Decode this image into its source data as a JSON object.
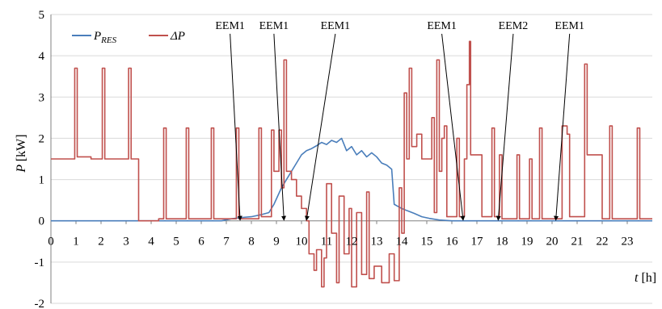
{
  "chart_data": {
    "type": "line",
    "xlabel_var": "t",
    "xlabel_unit": "[h]",
    "ylabel_var": "P",
    "ylabel_unit": "[kW]",
    "xlim": [
      0,
      24
    ],
    "ylim": [
      -2,
      5
    ],
    "x_ticks": [
      0,
      1,
      2,
      3,
      4,
      5,
      6,
      7,
      8,
      9,
      10,
      11,
      12,
      13,
      14,
      15,
      16,
      17,
      18,
      19,
      20,
      21,
      22,
      23
    ],
    "y_ticks": [
      -2,
      -1,
      0,
      1,
      2,
      3,
      4,
      5
    ],
    "grid": "horizontal",
    "legend_position": "top-left",
    "series": [
      {
        "name_main": "P",
        "name_sub": "RES",
        "color": "#4a7ebb",
        "points": [
          [
            0,
            0
          ],
          [
            6.8,
            0
          ],
          [
            7.2,
            0.05
          ],
          [
            7.6,
            0.08
          ],
          [
            8.0,
            0.1
          ],
          [
            8.4,
            0.15
          ],
          [
            8.7,
            0.2
          ],
          [
            8.9,
            0.4
          ],
          [
            9.2,
            0.8
          ],
          [
            9.5,
            1.1
          ],
          [
            9.8,
            1.4
          ],
          [
            10.0,
            1.6
          ],
          [
            10.2,
            1.7
          ],
          [
            10.4,
            1.75
          ],
          [
            10.6,
            1.82
          ],
          [
            10.8,
            1.9
          ],
          [
            11.0,
            1.85
          ],
          [
            11.2,
            1.95
          ],
          [
            11.4,
            1.9
          ],
          [
            11.6,
            2.0
          ],
          [
            11.8,
            1.7
          ],
          [
            12.0,
            1.8
          ],
          [
            12.2,
            1.6
          ],
          [
            12.4,
            1.7
          ],
          [
            12.6,
            1.55
          ],
          [
            12.8,
            1.65
          ],
          [
            13.0,
            1.55
          ],
          [
            13.2,
            1.4
          ],
          [
            13.4,
            1.35
          ],
          [
            13.6,
            1.25
          ],
          [
            13.7,
            0.4
          ],
          [
            14.0,
            0.3
          ],
          [
            14.2,
            0.25
          ],
          [
            14.5,
            0.18
          ],
          [
            14.8,
            0.1
          ],
          [
            15.1,
            0.06
          ],
          [
            15.5,
            0.02
          ],
          [
            16.0,
            0
          ],
          [
            24,
            0
          ]
        ]
      },
      {
        "name_main": "ΔP",
        "color": "#c0504d",
        "points": [
          [
            0,
            1.5
          ],
          [
            0.95,
            1.5
          ],
          [
            0.95,
            3.7
          ],
          [
            1.05,
            3.7
          ],
          [
            1.05,
            1.55
          ],
          [
            1.6,
            1.55
          ],
          [
            1.6,
            1.5
          ],
          [
            2.05,
            1.5
          ],
          [
            2.05,
            3.7
          ],
          [
            2.15,
            3.7
          ],
          [
            2.15,
            1.5
          ],
          [
            3.1,
            1.5
          ],
          [
            3.1,
            3.7
          ],
          [
            3.2,
            3.7
          ],
          [
            3.2,
            1.5
          ],
          [
            3.5,
            1.5
          ],
          [
            3.5,
            0
          ],
          [
            4.3,
            0
          ],
          [
            4.3,
            0.05
          ],
          [
            4.5,
            0.05
          ],
          [
            4.5,
            2.25
          ],
          [
            4.6,
            2.25
          ],
          [
            4.6,
            0.05
          ],
          [
            5.4,
            0.05
          ],
          [
            5.4,
            2.25
          ],
          [
            5.5,
            2.25
          ],
          [
            5.5,
            0.05
          ],
          [
            6.4,
            0.05
          ],
          [
            6.4,
            2.25
          ],
          [
            6.5,
            2.25
          ],
          [
            6.5,
            0.05
          ],
          [
            7.4,
            0.05
          ],
          [
            7.4,
            2.25
          ],
          [
            7.5,
            2.25
          ],
          [
            7.5,
            0.05
          ],
          [
            8.3,
            0.05
          ],
          [
            8.3,
            2.25
          ],
          [
            8.4,
            2.25
          ],
          [
            8.4,
            0.1
          ],
          [
            8.8,
            0.1
          ],
          [
            8.8,
            2.2
          ],
          [
            8.9,
            2.2
          ],
          [
            8.9,
            1.2
          ],
          [
            9.1,
            1.2
          ],
          [
            9.1,
            2.2
          ],
          [
            9.2,
            2.2
          ],
          [
            9.2,
            0.8
          ],
          [
            9.3,
            0.8
          ],
          [
            9.3,
            3.9
          ],
          [
            9.4,
            3.9
          ],
          [
            9.4,
            1.2
          ],
          [
            9.6,
            1.2
          ],
          [
            9.6,
            1.0
          ],
          [
            9.8,
            1.0
          ],
          [
            9.8,
            0.6
          ],
          [
            10.0,
            0.6
          ],
          [
            10.0,
            0.3
          ],
          [
            10.2,
            0.3
          ],
          [
            10.2,
            0
          ],
          [
            10.3,
            0
          ],
          [
            10.3,
            -0.8
          ],
          [
            10.5,
            -0.8
          ],
          [
            10.5,
            -1.2
          ],
          [
            10.6,
            -1.2
          ],
          [
            10.6,
            -0.7
          ],
          [
            10.8,
            -0.7
          ],
          [
            10.8,
            -1.6
          ],
          [
            10.9,
            -1.6
          ],
          [
            10.9,
            -0.9
          ],
          [
            11.0,
            -0.9
          ],
          [
            11.0,
            0.9
          ],
          [
            11.2,
            0.9
          ],
          [
            11.2,
            -0.3
          ],
          [
            11.4,
            -0.3
          ],
          [
            11.4,
            -1.5
          ],
          [
            11.5,
            -1.5
          ],
          [
            11.5,
            0.6
          ],
          [
            11.7,
            0.6
          ],
          [
            11.7,
            -0.8
          ],
          [
            11.9,
            -0.8
          ],
          [
            11.9,
            0.3
          ],
          [
            12.0,
            0.3
          ],
          [
            12.0,
            -1.6
          ],
          [
            12.2,
            -1.6
          ],
          [
            12.2,
            0.2
          ],
          [
            12.4,
            0.2
          ],
          [
            12.4,
            -1.3
          ],
          [
            12.6,
            -1.3
          ],
          [
            12.6,
            0.7
          ],
          [
            12.7,
            0.7
          ],
          [
            12.7,
            -1.4
          ],
          [
            12.9,
            -1.4
          ],
          [
            12.9,
            -1.1
          ],
          [
            13.2,
            -1.1
          ],
          [
            13.2,
            -1.5
          ],
          [
            13.5,
            -1.5
          ],
          [
            13.5,
            -0.8
          ],
          [
            13.7,
            -0.8
          ],
          [
            13.7,
            -1.45
          ],
          [
            13.9,
            -1.45
          ],
          [
            13.9,
            0.8
          ],
          [
            14.0,
            0.8
          ],
          [
            14.0,
            -0.3
          ],
          [
            14.1,
            -0.3
          ],
          [
            14.1,
            3.1
          ],
          [
            14.2,
            3.1
          ],
          [
            14.2,
            1.5
          ],
          [
            14.3,
            1.5
          ],
          [
            14.3,
            3.7
          ],
          [
            14.4,
            3.7
          ],
          [
            14.4,
            1.8
          ],
          [
            14.6,
            1.8
          ],
          [
            14.6,
            2.1
          ],
          [
            14.8,
            2.1
          ],
          [
            14.8,
            1.5
          ],
          [
            15.2,
            1.5
          ],
          [
            15.2,
            2.5
          ],
          [
            15.3,
            2.5
          ],
          [
            15.3,
            0.2
          ],
          [
            15.4,
            0.2
          ],
          [
            15.4,
            3.9
          ],
          [
            15.5,
            3.9
          ],
          [
            15.5,
            1.2
          ],
          [
            15.6,
            1.2
          ],
          [
            15.6,
            2.0
          ],
          [
            15.7,
            2.0
          ],
          [
            15.7,
            2.3
          ],
          [
            15.8,
            2.3
          ],
          [
            15.8,
            0.1
          ],
          [
            16.2,
            0.1
          ],
          [
            16.2,
            2.0
          ],
          [
            16.3,
            2.0
          ],
          [
            16.3,
            0.1
          ],
          [
            16.5,
            0.1
          ],
          [
            16.5,
            1.5
          ],
          [
            16.6,
            1.5
          ],
          [
            16.6,
            3.3
          ],
          [
            16.7,
            3.3
          ],
          [
            16.7,
            4.35
          ],
          [
            16.75,
            4.35
          ],
          [
            16.75,
            1.6
          ],
          [
            17.2,
            1.6
          ],
          [
            17.2,
            0.1
          ],
          [
            17.6,
            0.1
          ],
          [
            17.6,
            2.25
          ],
          [
            17.7,
            2.25
          ],
          [
            17.7,
            0.1
          ],
          [
            17.9,
            0.1
          ],
          [
            17.9,
            1.6
          ],
          [
            18.0,
            1.6
          ],
          [
            18.0,
            0.05
          ],
          [
            18.6,
            0.05
          ],
          [
            18.6,
            1.6
          ],
          [
            18.7,
            1.6
          ],
          [
            18.7,
            0.05
          ],
          [
            19.1,
            0.05
          ],
          [
            19.1,
            1.5
          ],
          [
            19.2,
            1.5
          ],
          [
            19.2,
            0.05
          ],
          [
            19.5,
            0.05
          ],
          [
            19.5,
            2.25
          ],
          [
            19.6,
            2.25
          ],
          [
            19.6,
            0.05
          ],
          [
            20.4,
            0.05
          ],
          [
            20.4,
            2.3
          ],
          [
            20.6,
            2.3
          ],
          [
            20.6,
            2.1
          ],
          [
            20.7,
            2.1
          ],
          [
            20.7,
            0.1
          ],
          [
            21.3,
            0.1
          ],
          [
            21.3,
            3.8
          ],
          [
            21.4,
            3.8
          ],
          [
            21.4,
            1.6
          ],
          [
            22.0,
            1.6
          ],
          [
            22.0,
            0.05
          ],
          [
            22.3,
            0.05
          ],
          [
            22.3,
            2.3
          ],
          [
            22.4,
            2.3
          ],
          [
            22.4,
            0.05
          ],
          [
            23.4,
            0.05
          ],
          [
            23.4,
            2.25
          ],
          [
            23.5,
            2.25
          ],
          [
            23.5,
            0.05
          ],
          [
            24,
            0.05
          ]
        ]
      }
    ],
    "annotations": [
      {
        "label": "EEM1",
        "label_x": 7.15,
        "label_y": 4.65,
        "arrow_to": [
          7.55,
          0
        ]
      },
      {
        "label": "EEM1",
        "label_x": 8.9,
        "label_y": 4.65,
        "arrow_to": [
          9.3,
          0
        ]
      },
      {
        "label": "EEM1",
        "label_x": 11.35,
        "label_y": 4.65,
        "arrow_to": [
          10.2,
          0
        ]
      },
      {
        "label": "EEM1",
        "label_x": 15.6,
        "label_y": 4.65,
        "arrow_to": [
          16.45,
          0
        ]
      },
      {
        "label": "EEM2",
        "label_x": 18.45,
        "label_y": 4.65,
        "arrow_to": [
          17.85,
          0
        ]
      },
      {
        "label": "EEM1",
        "label_x": 20.7,
        "label_y": 4.65,
        "arrow_to": [
          20.15,
          0
        ]
      }
    ]
  }
}
